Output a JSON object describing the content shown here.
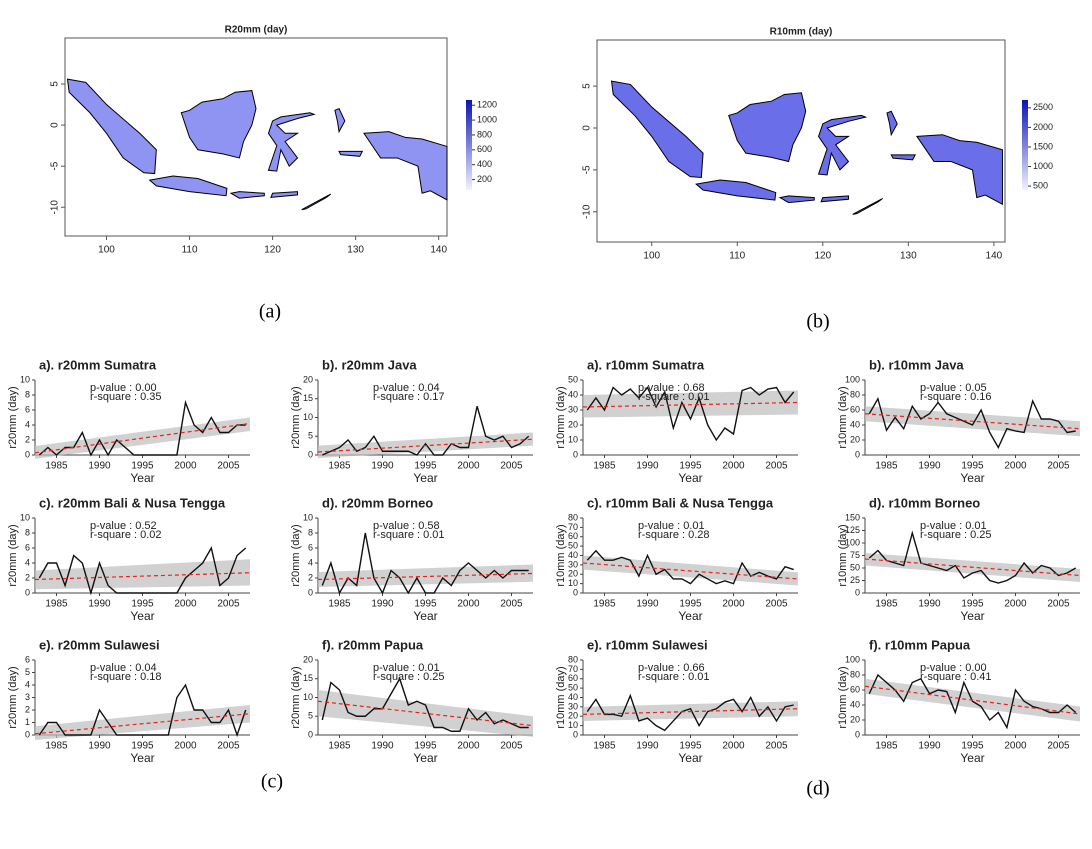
{
  "captions": [
    "(a)",
    "(b)",
    "(c)",
    "(d)"
  ],
  "chart_data": [
    {
      "type": "map",
      "title": "R20mm (day)",
      "xlim": [
        95,
        141
      ],
      "xticks": [
        100,
        110,
        120,
        130,
        140
      ],
      "ylim": [
        -13.5,
        10.6
      ],
      "yticks": [
        5,
        0,
        -5,
        -10
      ],
      "clim": [
        60,
        1270
      ],
      "cticks": [
        200,
        400,
        600,
        800,
        1000,
        1200
      ]
    },
    {
      "type": "map",
      "title": "R10mm (day)",
      "xlim": [
        93.6,
        141.3
      ],
      "xticks": [
        100,
        110,
        120,
        130,
        140
      ],
      "ylim": [
        -13.6,
        10.5
      ],
      "yticks": [
        5,
        0,
        -5,
        -10
      ],
      "clim": [
        400,
        2700
      ],
      "cticks": [
        500,
        1000,
        1500,
        2000,
        2500
      ]
    },
    {
      "type": "line",
      "title": "a). r20mm Sumatra",
      "ylabel": "r20mm (day)",
      "xlabel": "Year",
      "annotations": [
        "p-value : 0.00",
        "r-square : 0.35"
      ],
      "xlim": [
        1982.5,
        2007.5
      ],
      "xticks": [
        1985,
        1990,
        1995,
        2000,
        2005
      ],
      "ylim": [
        0,
        10
      ],
      "yticks": [
        0,
        2,
        4,
        6,
        8,
        10
      ],
      "x": [
        1983,
        1984,
        1985,
        1986,
        1987,
        1988,
        1989,
        1990,
        1991,
        1992,
        1993,
        1994,
        1995,
        1996,
        1997,
        1998,
        1999,
        2000,
        2001,
        2002,
        2003,
        2004,
        2005,
        2006,
        2007
      ],
      "values": [
        0,
        1,
        0,
        1,
        1,
        3,
        0,
        2,
        0,
        2,
        1,
        0,
        0,
        0,
        0,
        0,
        0,
        7,
        4,
        3,
        5,
        3,
        3,
        4,
        4
      ],
      "trend": [
        0.3,
        4.2
      ],
      "band_lower": [
        -0.5,
        3.2
      ],
      "band_upper": [
        1.2,
        5
      ]
    },
    {
      "type": "line",
      "title": "b). r20mm Java",
      "ylabel": "r20mm (day)",
      "xlabel": "Year",
      "annotations": [
        "p-value : 0.04",
        "r-square : 0.17"
      ],
      "xlim": [
        1982.5,
        2007.5
      ],
      "xticks": [
        1985,
        1990,
        1995,
        2000,
        2005
      ],
      "ylim": [
        0,
        20
      ],
      "yticks": [
        0,
        5,
        10,
        15,
        20
      ],
      "x": [
        1983,
        1984,
        1985,
        1986,
        1987,
        1988,
        1989,
        1990,
        1991,
        1992,
        1993,
        1994,
        1995,
        1996,
        1997,
        1998,
        1999,
        2000,
        2001,
        2002,
        2003,
        2004,
        2005,
        2006,
        2007
      ],
      "values": [
        0,
        1,
        2,
        4,
        1,
        2,
        5,
        1,
        1,
        1,
        1,
        0,
        3,
        0,
        0,
        3,
        2,
        2,
        13,
        5,
        4,
        5,
        2,
        3,
        5
      ],
      "trend": [
        0.8,
        4.2
      ],
      "band_lower": [
        -0.8,
        2.5
      ],
      "band_upper": [
        2.5,
        6
      ]
    },
    {
      "type": "line",
      "title": "c). r20mm Bali & Nusa Tengga",
      "ylabel": "r20mm (day)",
      "xlabel": "Year",
      "annotations": [
        "p-value : 0.52",
        "r-square : 0.02"
      ],
      "xlim": [
        1982.5,
        2007.5
      ],
      "xticks": [
        1985,
        1990,
        1995,
        2000,
        2005
      ],
      "ylim": [
        0,
        10
      ],
      "yticks": [
        0,
        2,
        4,
        6,
        8,
        10
      ],
      "x": [
        1983,
        1984,
        1985,
        1986,
        1987,
        1988,
        1989,
        1990,
        1991,
        1992,
        1993,
        1994,
        1995,
        1996,
        1997,
        1998,
        1999,
        2000,
        2001,
        2002,
        2003,
        2004,
        2005,
        2006,
        2007
      ],
      "values": [
        2,
        4,
        4,
        1,
        5,
        4,
        0,
        4,
        1,
        0,
        0,
        0,
        0,
        0,
        0,
        0,
        0,
        2,
        3,
        4,
        6,
        1,
        2,
        5,
        6
      ],
      "trend": [
        1.8,
        2.7
      ],
      "band_lower": [
        0.5,
        1
      ],
      "band_upper": [
        3,
        4.5
      ]
    },
    {
      "type": "line",
      "title": "d). r20mm Borneo",
      "ylabel": "r20mm (day)",
      "xlabel": "Year",
      "annotations": [
        "p-value : 0.58",
        "r-square : 0.01"
      ],
      "xlim": [
        1982.5,
        2007.5
      ],
      "xticks": [
        1985,
        1990,
        1995,
        2000,
        2005
      ],
      "ylim": [
        0,
        10
      ],
      "yticks": [
        0,
        2,
        4,
        6,
        8,
        10
      ],
      "x": [
        1983,
        1984,
        1985,
        1986,
        1987,
        1988,
        1989,
        1990,
        1991,
        1992,
        1993,
        1994,
        1995,
        1996,
        1997,
        1998,
        1999,
        2000,
        2001,
        2002,
        2003,
        2004,
        2005,
        2006,
        2007
      ],
      "values": [
        1,
        4,
        0,
        2,
        1,
        8,
        2,
        0,
        3,
        2,
        0,
        2,
        0,
        0,
        2,
        1,
        3,
        4,
        3,
        2,
        3,
        2,
        3,
        3,
        3
      ],
      "trend": [
        1.8,
        2.6
      ],
      "band_lower": [
        0.8,
        1.5
      ],
      "band_upper": [
        2.8,
        3.8
      ]
    },
    {
      "type": "line",
      "title": "e). r20mm Sulawesi",
      "ylabel": "r20mm (day)",
      "xlabel": "Year",
      "annotations": [
        "p-value : 0.04",
        "r-square : 0.18"
      ],
      "xlim": [
        1982.5,
        2007.5
      ],
      "xticks": [
        1985,
        1990,
        1995,
        2000,
        2005
      ],
      "ylim": [
        0,
        6
      ],
      "yticks": [
        0,
        1,
        2,
        3,
        4,
        5,
        6
      ],
      "x": [
        1983,
        1984,
        1985,
        1986,
        1987,
        1988,
        1989,
        1990,
        1991,
        1992,
        1993,
        1994,
        1995,
        1996,
        1997,
        1998,
        1999,
        2000,
        2001,
        2002,
        2003,
        2004,
        2005,
        2006,
        2007
      ],
      "values": [
        0,
        1,
        1,
        0,
        0,
        0,
        0,
        2,
        1,
        0,
        0,
        0,
        0,
        0,
        0,
        0,
        3,
        4,
        2,
        2,
        1,
        1,
        2,
        0,
        2
      ],
      "trend": [
        0.1,
        1.7
      ],
      "band_lower": [
        -0.4,
        1
      ],
      "band_upper": [
        0.7,
        2.4
      ]
    },
    {
      "type": "line",
      "title": "f). r20mm Papua",
      "ylabel": "r20mm (day)",
      "xlabel": "Year",
      "annotations": [
        "p-value : 0.01",
        "r-square : 0.25"
      ],
      "xlim": [
        1982.5,
        2007.5
      ],
      "xticks": [
        1985,
        1990,
        1995,
        2000,
        2005
      ],
      "ylim": [
        0,
        20
      ],
      "yticks": [
        0,
        5,
        10,
        15,
        20
      ],
      "x": [
        1983,
        1984,
        1985,
        1986,
        1987,
        1988,
        1989,
        1990,
        1991,
        1992,
        1993,
        1994,
        1995,
        1996,
        1997,
        1998,
        1999,
        2000,
        2001,
        2002,
        2003,
        2004,
        2005,
        2006,
        2007
      ],
      "values": [
        4,
        14,
        12,
        6,
        5,
        5,
        7,
        7,
        11,
        15,
        8,
        9,
        8,
        2,
        2,
        1,
        1,
        7,
        4,
        6,
        3,
        4,
        3,
        2,
        2
      ],
      "trend": [
        9,
        2.5
      ],
      "band_lower": [
        5,
        -0.5
      ],
      "band_upper": [
        12,
        5
      ]
    },
    {
      "type": "line",
      "title": "a). r10mm Sumatra",
      "ylabel": "r10mm (day)",
      "xlabel": "Year",
      "annotations": [
        "p-value : 0.68",
        "r-square : 0.01"
      ],
      "xlim": [
        1982.5,
        2007.5
      ],
      "xticks": [
        1985,
        1990,
        1995,
        2000,
        2005
      ],
      "ylim": [
        0,
        50
      ],
      "yticks": [
        0,
        10,
        20,
        30,
        40,
        50
      ],
      "x": [
        1983,
        1984,
        1985,
        1986,
        1987,
        1988,
        1989,
        1990,
        1991,
        1992,
        1993,
        1994,
        1995,
        1996,
        1997,
        1998,
        1999,
        2000,
        2001,
        2002,
        2003,
        2004,
        2005,
        2006,
        2007
      ],
      "values": [
        30,
        38,
        30,
        45,
        40,
        44,
        38,
        45,
        32,
        42,
        18,
        35,
        24,
        38,
        20,
        10,
        18,
        14,
        43,
        45,
        40,
        44,
        45,
        35,
        42
      ],
      "trend": [
        32,
        35
      ],
      "band_lower": [
        25,
        27
      ],
      "band_upper": [
        40,
        43
      ]
    },
    {
      "type": "line",
      "title": "b). r10mm Java",
      "ylabel": "r10mm (day)",
      "xlabel": "Year",
      "annotations": [
        "p-value : 0.05",
        "r-square : 0.16"
      ],
      "xlim": [
        1982.5,
        2007.5
      ],
      "xticks": [
        1985,
        1990,
        1995,
        2000,
        2005
      ],
      "ylim": [
        0,
        100
      ],
      "yticks": [
        0,
        20,
        40,
        60,
        80,
        100
      ],
      "x": [
        1983,
        1984,
        1985,
        1986,
        1987,
        1988,
        1989,
        1990,
        1991,
        1992,
        1993,
        1994,
        1995,
        1996,
        1997,
        1998,
        1999,
        2000,
        2001,
        2002,
        2003,
        2004,
        2005,
        2006,
        2007
      ],
      "values": [
        55,
        75,
        33,
        50,
        35,
        65,
        48,
        55,
        70,
        55,
        50,
        45,
        40,
        60,
        30,
        10,
        35,
        32,
        30,
        72,
        48,
        48,
        45,
        30,
        32
      ],
      "trend": [
        55,
        35
      ],
      "band_lower": [
        45,
        25
      ],
      "band_upper": [
        65,
        45
      ]
    },
    {
      "type": "line",
      "title": "c). r10mm Bali & Nusa Tengga",
      "ylabel": "r10mm (day)",
      "xlabel": "Year",
      "annotations": [
        "p-value : 0.01",
        "r-square : 0.28"
      ],
      "xlim": [
        1982.5,
        2007.5
      ],
      "xticks": [
        1985,
        1990,
        1995,
        2000,
        2005
      ],
      "ylim": [
        0,
        80
      ],
      "yticks": [
        0,
        10,
        20,
        30,
        40,
        50,
        60,
        70,
        80
      ],
      "x": [
        1983,
        1984,
        1985,
        1986,
        1987,
        1988,
        1989,
        1990,
        1991,
        1992,
        1993,
        1994,
        1995,
        1996,
        1997,
        1998,
        1999,
        2000,
        2001,
        2002,
        2003,
        2004,
        2005,
        2006,
        2007
      ],
      "values": [
        35,
        45,
        35,
        35,
        38,
        35,
        18,
        40,
        20,
        25,
        15,
        15,
        10,
        20,
        15,
        10,
        13,
        10,
        32,
        18,
        22,
        18,
        15,
        28,
        25
      ],
      "trend": [
        32,
        15
      ],
      "band_lower": [
        25,
        8
      ],
      "band_upper": [
        40,
        22
      ]
    },
    {
      "type": "line",
      "title": "d). r10mm Borneo",
      "ylabel": "r10mm (day)",
      "xlabel": "Year",
      "annotations": [
        "p-value : 0.01",
        "r-square : 0.25"
      ],
      "xlim": [
        1982.5,
        2007.5
      ],
      "xticks": [
        1985,
        1990,
        1995,
        2000,
        2005
      ],
      "ylim": [
        0,
        150
      ],
      "yticks": [
        0,
        25,
        50,
        75,
        100,
        125,
        150
      ],
      "x": [
        1983,
        1984,
        1985,
        1986,
        1987,
        1988,
        1989,
        1990,
        1991,
        1992,
        1993,
        1994,
        1995,
        1996,
        1997,
        1998,
        1999,
        2000,
        2001,
        2002,
        2003,
        2004,
        2005,
        2006,
        2007
      ],
      "values": [
        70,
        85,
        65,
        60,
        55,
        120,
        60,
        55,
        50,
        45,
        55,
        30,
        40,
        45,
        25,
        20,
        25,
        35,
        60,
        40,
        55,
        50,
        35,
        40,
        50
      ],
      "trend": [
        68,
        35
      ],
      "band_lower": [
        55,
        22
      ],
      "band_upper": [
        80,
        48
      ]
    },
    {
      "type": "line",
      "title": "e). r10mm Sulawesi",
      "ylabel": "r10mm (day)",
      "xlabel": "Year",
      "annotations": [
        "p-value : 0.66",
        "r-square : 0.01"
      ],
      "xlim": [
        1982.5,
        2007.5
      ],
      "xticks": [
        1985,
        1990,
        1995,
        2000,
        2005
      ],
      "ylim": [
        0,
        80
      ],
      "yticks": [
        0,
        10,
        20,
        30,
        40,
        50,
        60,
        70,
        80
      ],
      "x": [
        1983,
        1984,
        1985,
        1986,
        1987,
        1988,
        1989,
        1990,
        1991,
        1992,
        1993,
        1994,
        1995,
        1996,
        1997,
        1998,
        1999,
        2000,
        2001,
        2002,
        2003,
        2004,
        2005,
        2006,
        2007
      ],
      "values": [
        25,
        38,
        22,
        22,
        20,
        42,
        15,
        18,
        10,
        5,
        15,
        25,
        28,
        10,
        25,
        28,
        35,
        38,
        25,
        40,
        20,
        30,
        15,
        30,
        32
      ],
      "trend": [
        22,
        28
      ],
      "band_lower": [
        15,
        20
      ],
      "band_upper": [
        30,
        36
      ]
    },
    {
      "type": "line",
      "title": "f). r10mm Papua",
      "ylabel": "r10mm (day)",
      "xlabel": "Year",
      "annotations": [
        "p-value : 0.00",
        "r-square : 0.41"
      ],
      "xlim": [
        1982.5,
        2007.5
      ],
      "xticks": [
        1985,
        1990,
        1995,
        2000,
        2005
      ],
      "ylim": [
        0,
        100
      ],
      "yticks": [
        0,
        20,
        40,
        60,
        80,
        100
      ],
      "x": [
        1983,
        1984,
        1985,
        1986,
        1987,
        1988,
        1989,
        1990,
        1991,
        1992,
        1993,
        1994,
        1995,
        1996,
        1997,
        1998,
        1999,
        2000,
        2001,
        2002,
        2003,
        2004,
        2005,
        2006,
        2007
      ],
      "values": [
        55,
        80,
        70,
        60,
        45,
        70,
        75,
        55,
        60,
        58,
        30,
        70,
        45,
        38,
        20,
        30,
        10,
        60,
        45,
        38,
        35,
        30,
        30,
        40,
        30
      ],
      "trend": [
        65,
        28
      ],
      "band_lower": [
        55,
        18
      ],
      "band_upper": [
        75,
        38
      ]
    }
  ]
}
